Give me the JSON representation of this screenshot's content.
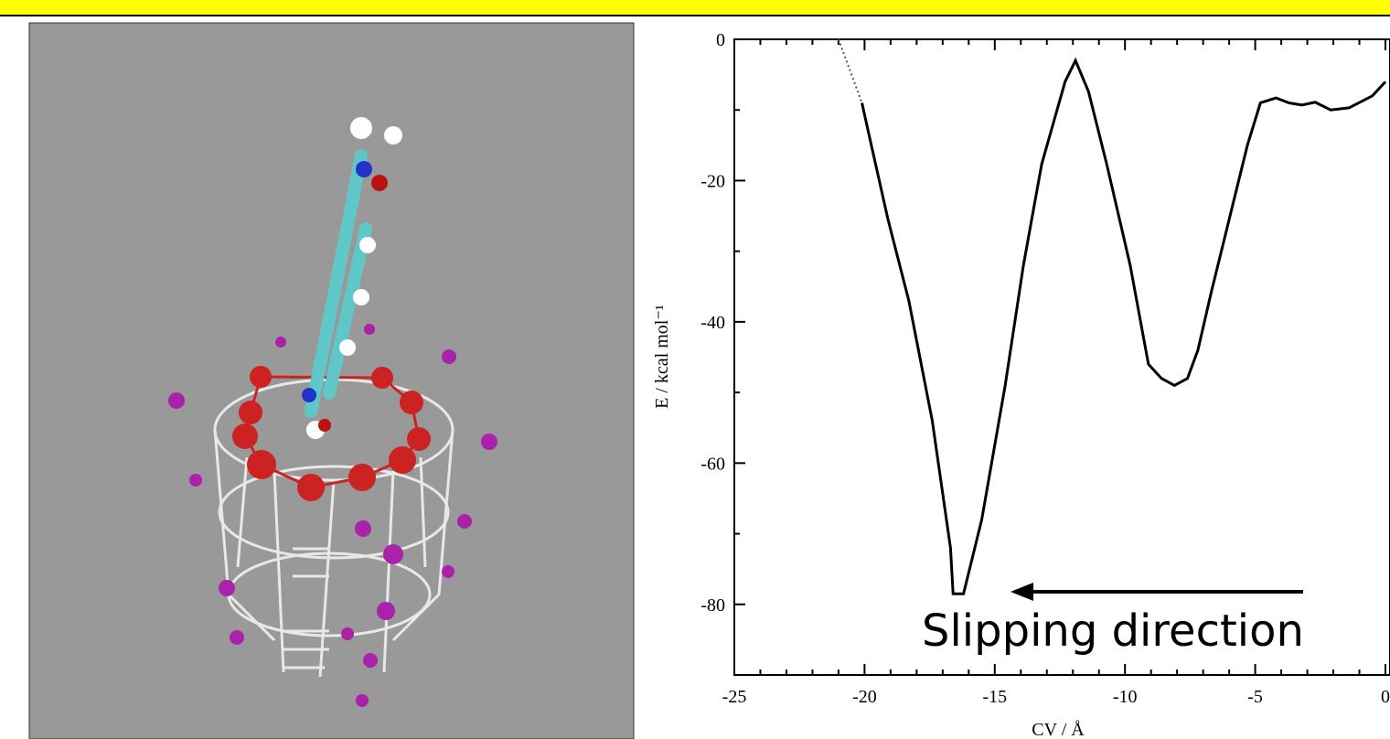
{
  "chart_data": {
    "type": "line",
    "xlabel": "CV / Å",
    "ylabel": "E / kcal mol⁻¹",
    "annotation": "Slipping direction",
    "xlim": [
      -25,
      0
    ],
    "xticks": [
      -25,
      -20,
      -15,
      -10,
      -5,
      0
    ],
    "xminorticks": [
      -24,
      -23,
      -22,
      -21,
      -19,
      -18,
      -17,
      -16,
      -14,
      -13,
      -12,
      -11,
      -9,
      -8,
      -7,
      -6,
      -4,
      -3,
      -2,
      -1
    ],
    "ylim": [
      -90,
      0
    ],
    "yticks": [
      0,
      -20,
      -40,
      -60,
      -80
    ],
    "yminorticks": [
      -10,
      -30,
      -50,
      -70
    ],
    "series": [
      {
        "color": "#555555",
        "style": "dotted",
        "x": [
          -21,
          -20.1
        ],
        "values": [
          0,
          -9
        ]
      },
      {
        "color": "#000000",
        "style": "solid",
        "x": [
          -20.1,
          -19.8,
          -19.1,
          -18.3,
          -17.4,
          -16.7,
          -16.6,
          -16.2,
          -15.5,
          -14.6,
          -13.9,
          -13.2,
          -12.3,
          -11.9,
          -11.4,
          -10.7,
          -9.8,
          -9.1,
          -8.6,
          -8.1,
          -7.6,
          -7.2,
          -6.7,
          -6.0,
          -5.3,
          -4.8,
          -4.2,
          -3.7,
          -3.2,
          -2.7,
          -2.1,
          -1.4,
          -0.5,
          0
        ],
        "values": [
          -9,
          -14,
          -25.5,
          -37,
          -54,
          -72,
          -78.5,
          -78.5,
          -68,
          -49,
          -32,
          -17.7,
          -6,
          -3,
          -7.4,
          -17.7,
          -32,
          -46,
          -48,
          -49,
          -48,
          -44,
          -36,
          -25.5,
          -15,
          -9,
          -8.3,
          -9,
          -9.3,
          -8.9,
          -10,
          -9.7,
          -8,
          -6
        ]
      }
    ]
  }
}
